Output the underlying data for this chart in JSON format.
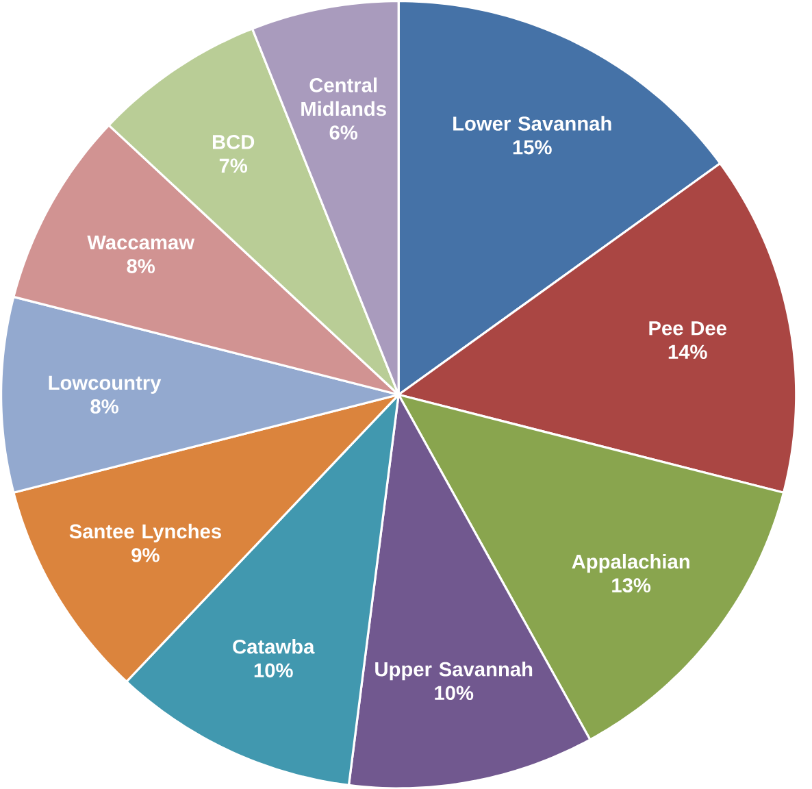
{
  "chart_data": {
    "type": "pie",
    "categories": [
      "Lower Savannah",
      "Pee Dee",
      "Appalachian",
      "Upper Savannah",
      "Catawba",
      "Santee Lynches",
      "Lowcountry",
      "Waccamaw",
      "BCD",
      "Central Midlands"
    ],
    "values": [
      15,
      14,
      13,
      10,
      10,
      9,
      8,
      8,
      7,
      6
    ],
    "value_labels": [
      "15%",
      "14%",
      "13%",
      "10%",
      "10%",
      "9%",
      "8%",
      "8%",
      "7%",
      "6%"
    ],
    "colors": [
      "#4572a7",
      "#aa4643",
      "#89a54e",
      "#71588f",
      "#4198af",
      "#db843d",
      "#93a9cf",
      "#d19392",
      "#b9cd96",
      "#a99bbd"
    ]
  }
}
